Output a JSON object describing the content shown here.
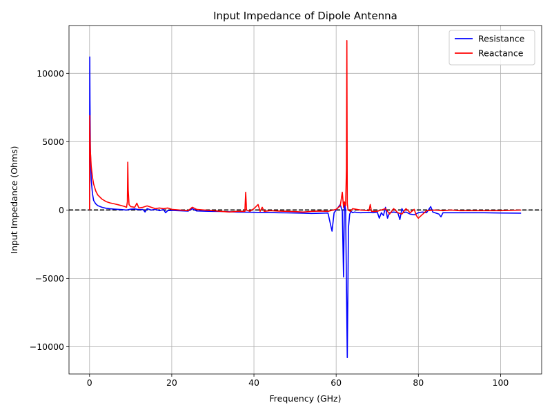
{
  "chart_data": {
    "type": "line",
    "title": "Input Impedance of Dipole Antenna",
    "xlabel": "Frequency (GHz)",
    "ylabel": "Input Impedance (Ohms)",
    "xlim": [
      -5,
      110
    ],
    "ylim": [
      -12000,
      13500
    ],
    "xticks": [
      0,
      20,
      40,
      60,
      80,
      100
    ],
    "xtick_labels": [
      "0",
      "20",
      "40",
      "60",
      "80",
      "100"
    ],
    "yticks": [
      -10000,
      -5000,
      0,
      5000,
      10000
    ],
    "ytick_labels": [
      "−10000",
      "−5000",
      "0",
      "5000",
      "10000"
    ],
    "grid": true,
    "legend_position": "top-right",
    "reference_line": {
      "y": 0,
      "style": "dashed",
      "color": "#000000"
    },
    "series": [
      {
        "name": "Resistance",
        "color": "#0000ff",
        "x": [
          0.0,
          0.05,
          0.1,
          0.2,
          0.4,
          0.7,
          1.0,
          1.5,
          2,
          3,
          4,
          5,
          6,
          7,
          8,
          9,
          10,
          11,
          12,
          13,
          13.5,
          14,
          15,
          16,
          17,
          18,
          18.5,
          19,
          20,
          22,
          24,
          25,
          26,
          28,
          30,
          32,
          34,
          36,
          38,
          40,
          42,
          44,
          46,
          48,
          50,
          52,
          54,
          56,
          58,
          59,
          59.5,
          60,
          60.5,
          61,
          61.5,
          61.8,
          62,
          62.3,
          62.7,
          63,
          63.3,
          63.6,
          64,
          64.5,
          65,
          66,
          67,
          68,
          69,
          70,
          70.5,
          71,
          71.5,
          72,
          72.5,
          73,
          74,
          75,
          75.5,
          76,
          76.5,
          77,
          78,
          79,
          80,
          81,
          82,
          83,
          83.5,
          84,
          85,
          85.5,
          86,
          88,
          90,
          92,
          94,
          96,
          100,
          105
        ],
        "y": [
          0,
          11200,
          8000,
          4500,
          2200,
          1200,
          700,
          450,
          320,
          200,
          130,
          90,
          70,
          50,
          30,
          0,
          60,
          80,
          30,
          40,
          -150,
          100,
          0,
          50,
          -50,
          40,
          -200,
          -50,
          -30,
          -60,
          -80,
          100,
          -70,
          -90,
          -100,
          -110,
          -130,
          -150,
          -160,
          -170,
          -180,
          -190,
          -200,
          -210,
          -220,
          -230,
          -250,
          -240,
          -220,
          -1550,
          -200,
          0,
          200,
          400,
          -100,
          -4900,
          600,
          0,
          -10800,
          -1300,
          -300,
          -100,
          -200,
          -150,
          -180,
          -200,
          -180,
          -170,
          -200,
          -150,
          -600,
          -200,
          -400,
          200,
          -600,
          -200,
          -150,
          -200,
          -700,
          100,
          -200,
          -150,
          -300,
          -350,
          -200,
          -150,
          -200,
          250,
          -150,
          -200,
          -300,
          -500,
          -200,
          -200,
          -200,
          -200,
          -200,
          -200,
          -220,
          -230
        ]
      },
      {
        "name": "Reactance",
        "color": "#ff0000",
        "x": [
          0.0,
          0.02,
          0.05,
          0.1,
          0.2,
          0.4,
          0.7,
          1.0,
          1.5,
          2,
          3,
          4,
          5,
          6,
          7,
          8,
          8.5,
          9,
          9.2,
          9.3,
          9.4,
          9.6,
          10,
          11,
          11.5,
          12,
          13,
          14,
          15,
          16,
          17,
          18,
          19,
          20,
          22,
          24,
          25,
          26,
          28,
          30,
          32,
          34,
          36,
          37.8,
          38,
          38.2,
          39,
          40,
          41,
          41.5,
          42,
          42.5,
          44,
          46,
          48,
          50,
          52,
          54,
          56,
          58,
          60,
          61,
          61.5,
          61.8,
          62,
          62.3,
          62.5,
          62.6,
          62.7,
          62.9,
          63.5,
          64,
          66,
          68,
          68.3,
          68.6,
          70,
          72,
          73,
          74,
          75,
          76,
          77,
          78,
          79,
          79.5,
          80,
          82,
          84,
          86,
          88,
          90,
          95,
          100,
          105
        ],
        "y": [
          0,
          5500,
          6900,
          5500,
          4300,
          3200,
          2400,
          1900,
          1400,
          1100,
          800,
          620,
          520,
          450,
          380,
          300,
          260,
          200,
          600,
          3500,
          1500,
          400,
          250,
          200,
          500,
          150,
          200,
          300,
          200,
          100,
          150,
          100,
          150,
          50,
          0,
          -50,
          200,
          50,
          0,
          -50,
          -100,
          -150,
          -100,
          -100,
          1300,
          0,
          -100,
          100,
          400,
          -100,
          200,
          -100,
          -50,
          -80,
          -100,
          -120,
          -150,
          -100,
          -80,
          -100,
          50,
          300,
          1300,
          200,
          600,
          300,
          3000,
          12400,
          500,
          0,
          -100,
          100,
          0,
          -50,
          400,
          -100,
          -100,
          100,
          -300,
          100,
          -200,
          -300,
          100,
          -200,
          50,
          -400,
          -600,
          -50,
          0,
          -50,
          0,
          -50,
          -50,
          -50,
          0
        ]
      }
    ]
  }
}
